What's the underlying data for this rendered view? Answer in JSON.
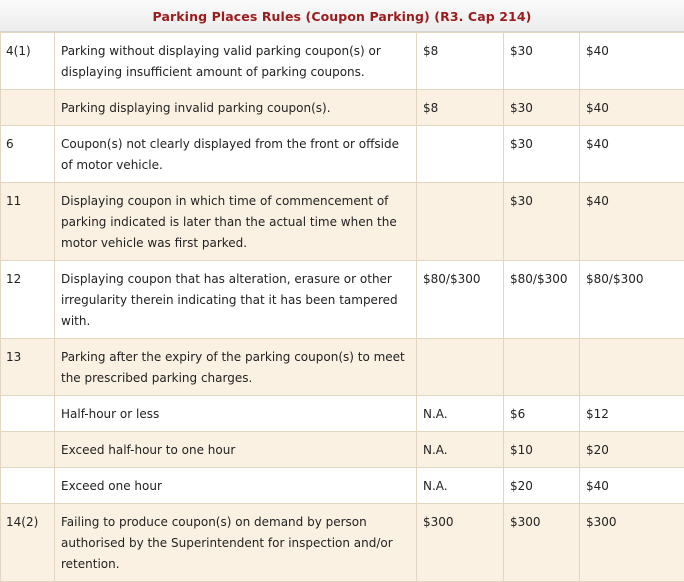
{
  "title": "Parking Places Rules (Coupon Parking) (R3. Cap 214)",
  "rows": [
    {
      "section": "4(1)",
      "description": "Parking without displaying valid parking coupon(s) or displaying insufficient amount of parking coupons.",
      "fine1": "$8",
      "fine2": "$30",
      "fine3": "$40"
    },
    {
      "section": "",
      "description": "Parking displaying invalid parking coupon(s).",
      "fine1": "$8",
      "fine2": "$30",
      "fine3": "$40"
    },
    {
      "section": "6",
      "description": "Coupon(s) not clearly displayed from the front or offside of motor vehicle.",
      "fine1": "",
      "fine2": "$30",
      "fine3": "$40"
    },
    {
      "section": "11",
      "description": "Displaying coupon in which time of commencement of parking indicated is later than the actual time when the motor vehicle was first parked.",
      "fine1": "",
      "fine2": "$30",
      "fine3": "$40"
    },
    {
      "section": "12",
      "description": "Displaying coupon that has alteration, erasure or other irregularity therein indicating that it has been tampered with.",
      "fine1": "$80/$300",
      "fine2": "$80/$300",
      "fine3": "$80/$300"
    },
    {
      "section": "13",
      "description": "Parking after the expiry of the parking coupon(s) to meet the prescribed parking charges.",
      "fine1": "",
      "fine2": "",
      "fine3": ""
    },
    {
      "section": "",
      "description": "Half-hour or less",
      "fine1": "N.A.",
      "fine2": "$6",
      "fine3": "$12"
    },
    {
      "section": "",
      "description": "Exceed half-hour to one hour",
      "fine1": "N.A.",
      "fine2": "$10",
      "fine3": "$20"
    },
    {
      "section": "",
      "description": "Exceed one hour",
      "fine1": "N.A.",
      "fine2": "$20",
      "fine3": "$40"
    },
    {
      "section": "14(2)",
      "description": "Failing to produce coupon(s) on demand by person authorised by the Superintendent for inspection and/or retention.",
      "fine1": "$300",
      "fine2": "$300",
      "fine3": "$300"
    }
  ]
}
